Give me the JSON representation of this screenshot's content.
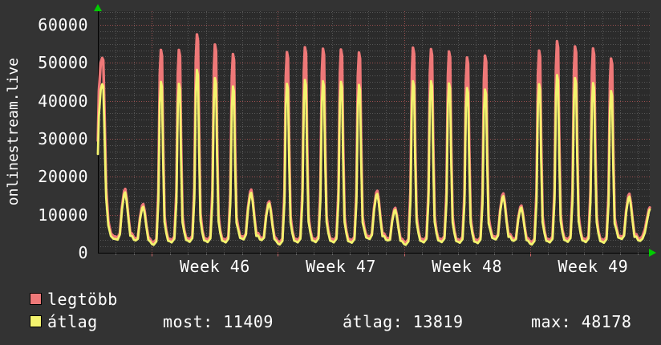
{
  "chart": {
    "y_axis_title": "onlinestream.live"
  },
  "colors": {
    "background": "#333333",
    "plot_background": "#2b2b2b",
    "text": "#ffffff",
    "max_line": "#ee7878",
    "avg_line": "#f3f36e",
    "grid_minor": "#565656",
    "grid_major": "#9c4f4f",
    "axis": "#000000",
    "arrow": "#00cc00"
  },
  "legend": [
    {
      "label": "legtöbb",
      "color": "#ee7878"
    },
    {
      "label": "átlag",
      "color": "#f3f36e"
    }
  ],
  "stats": [
    {
      "text": "most: 11409"
    },
    {
      "text": "átlag: 13819"
    },
    {
      "text": "max: 48178"
    }
  ],
  "chart_data": {
    "type": "line",
    "title": "onlinestream.live",
    "xlabel": "",
    "ylabel": "onlinestream.live",
    "ylim": [
      0,
      63500
    ],
    "y_major_step": 10000,
    "y_minor_per_major": 6,
    "y_ticks": [
      {
        "v": 0,
        "label": "0"
      },
      {
        "v": 10000,
        "label": "10000"
      },
      {
        "v": 20000,
        "label": "20000"
      },
      {
        "v": 30000,
        "label": "30000"
      },
      {
        "v": 40000,
        "label": "40000"
      },
      {
        "v": 50000,
        "label": "50000"
      },
      {
        "v": 60000,
        "label": "60000"
      }
    ],
    "x_range_days": 30.65,
    "week_boundaries_day": [
      3,
      10,
      17,
      24
    ],
    "x_ticks": [
      {
        "day": 6.5,
        "label": "Week 46"
      },
      {
        "day": 13.5,
        "label": "Week 47"
      },
      {
        "day": 20.5,
        "label": "Week 48"
      },
      {
        "day": 27.5,
        "label": "Week 49"
      }
    ],
    "legend_position": "bottom-left",
    "grid": true,
    "series": [
      {
        "name": "legtöbb",
        "role": "max",
        "color": "#ee7878",
        "width": 3.4
      },
      {
        "name": "átlag",
        "role": "avg",
        "color": "#f3f36e",
        "width": 2.8
      }
    ],
    "summary": {
      "most": 11409,
      "atlag": 13819,
      "max": 48178
    },
    "days": [
      {
        "type": "start",
        "trough_avg": 3600,
        "pts_avg": [
          [
            0,
            26000
          ],
          [
            0.06,
            36000
          ],
          [
            0.16,
            43000
          ],
          [
            0.24,
            44400
          ],
          [
            0.3,
            43800
          ],
          [
            0.36,
            33000
          ],
          [
            0.46,
            14500
          ],
          [
            0.58,
            7200
          ],
          [
            0.72,
            4400
          ],
          [
            0.86,
            3700
          ],
          [
            1,
            3600
          ]
        ],
        "pts_max": [
          [
            0,
            29500
          ],
          [
            0.06,
            42500
          ],
          [
            0.16,
            50000
          ],
          [
            0.24,
            51300
          ],
          [
            0.3,
            50700
          ],
          [
            0.36,
            38500
          ],
          [
            0.46,
            17000
          ],
          [
            0.58,
            8300
          ],
          [
            0.72,
            5100
          ],
          [
            0.86,
            4400
          ],
          [
            1,
            4200
          ]
        ]
      },
      {
        "type": "bump",
        "peak_avg": 15900,
        "peak_max": 16800,
        "trough_avg": 3400
      },
      {
        "type": "bump",
        "peak_avg": 12100,
        "peak_max": 12800,
        "trough_avg": 2300
      },
      {
        "type": "spike",
        "peak_avg": 45000,
        "peak_max": 53400,
        "trough_avg": 3000
      },
      {
        "type": "spike",
        "peak_avg": 44500,
        "peak_max": 53400,
        "trough_avg": 3200
      },
      {
        "type": "spike",
        "peak_avg": 48178,
        "peak_max": 57500,
        "trough_avg": 3100
      },
      {
        "type": "spike",
        "peak_avg": 46000,
        "peak_max": 54800,
        "trough_avg": 3000
      },
      {
        "type": "spike",
        "peak_avg": 43800,
        "peak_max": 52300,
        "trough_avg": 3700
      },
      {
        "type": "bump",
        "peak_avg": 15800,
        "peak_max": 16600,
        "trough_avg": 3500
      },
      {
        "type": "bump",
        "peak_avg": 13000,
        "peak_max": 13500,
        "trough_avg": 2400
      },
      {
        "type": "spike",
        "peak_avg": 44500,
        "peak_max": 52800,
        "trough_avg": 3000
      },
      {
        "type": "spike",
        "peak_avg": 45500,
        "peak_max": 54100,
        "trough_avg": 3100
      },
      {
        "type": "spike",
        "peak_avg": 45200,
        "peak_max": 53700,
        "trough_avg": 3000
      },
      {
        "type": "spike",
        "peak_avg": 45000,
        "peak_max": 53500,
        "trough_avg": 2900
      },
      {
        "type": "spike",
        "peak_avg": 44200,
        "peak_max": 52700,
        "trough_avg": 3800
      },
      {
        "type": "bump",
        "peak_avg": 15500,
        "peak_max": 16300,
        "trough_avg": 3400
      },
      {
        "type": "bump",
        "peak_avg": 11300,
        "peak_max": 11800,
        "trough_avg": 2300
      },
      {
        "type": "spike",
        "peak_avg": 45200,
        "peak_max": 54000,
        "trough_avg": 3000
      },
      {
        "type": "spike",
        "peak_avg": 45200,
        "peak_max": 53600,
        "trough_avg": 3100
      },
      {
        "type": "spike",
        "peak_avg": 44600,
        "peak_max": 53000,
        "trough_avg": 2900
      },
      {
        "type": "spike",
        "peak_avg": 43400,
        "peak_max": 51400,
        "trough_avg": 2800
      },
      {
        "type": "spike",
        "peak_avg": 43000,
        "peak_max": 51900,
        "trough_avg": 3700
      },
      {
        "type": "bump",
        "peak_avg": 14900,
        "peak_max": 15600,
        "trough_avg": 3300
      },
      {
        "type": "bump",
        "peak_avg": 11900,
        "peak_max": 12400,
        "trough_avg": 2400
      },
      {
        "type": "spike",
        "peak_avg": 44400,
        "peak_max": 53200,
        "trough_avg": 3000
      },
      {
        "type": "spike",
        "peak_avg": 46800,
        "peak_max": 55700,
        "trough_avg": 3200
      },
      {
        "type": "spike",
        "peak_avg": 46000,
        "peak_max": 54300,
        "trough_avg": 3100
      },
      {
        "type": "spike",
        "peak_avg": 44700,
        "peak_max": 53800,
        "trough_avg": 2900
      },
      {
        "type": "spike",
        "peak_avg": 42600,
        "peak_max": 51100,
        "trough_avg": 3800
      },
      {
        "type": "bump",
        "peak_avg": 14800,
        "peak_max": 15500,
        "trough_avg": 3300
      },
      {
        "type": "end",
        "pts_avg": [
          [
            0,
            3300
          ],
          [
            0.12,
            3100
          ],
          [
            0.25,
            3700
          ],
          [
            0.38,
            5300
          ],
          [
            0.5,
            8300
          ],
          [
            0.6,
            10800
          ],
          [
            0.65,
            11409
          ]
        ],
        "pts_max": [
          [
            0,
            3900
          ],
          [
            0.12,
            3700
          ],
          [
            0.25,
            4400
          ],
          [
            0.38,
            6100
          ],
          [
            0.5,
            9100
          ],
          [
            0.6,
            11400
          ],
          [
            0.65,
            11900
          ]
        ]
      }
    ]
  }
}
